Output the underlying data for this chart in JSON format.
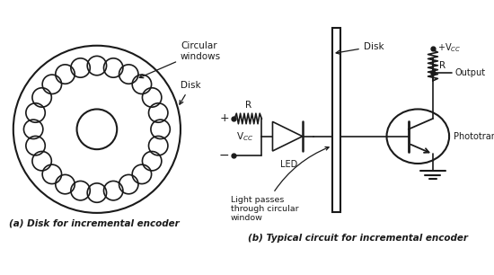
{
  "bg_color": "#ffffff",
  "line_color": "#1a1a1a",
  "num_holes": 24,
  "caption_a": "(a) Disk for incremental encoder",
  "caption_b": "(b) Typical circuit for incremental encoder",
  "label_circular_windows": "Circular\nwindows",
  "label_disk_left": "Disk",
  "label_disk_right": "Disk"
}
